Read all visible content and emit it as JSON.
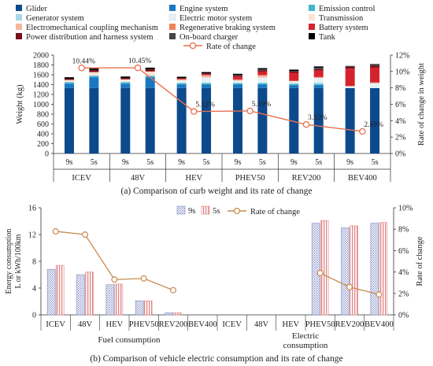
{
  "chart_data": [
    {
      "type": "bar",
      "title": "(a) Comparison of curb weight and its rate of change",
      "ylabel": "Weight (kg)",
      "y2label": "Rate of change in weight",
      "ylim": [
        0,
        2000
      ],
      "y2lim": [
        0,
        12
      ],
      "yticks": [
        "0",
        "200",
        "400",
        "600",
        "800",
        "1000",
        "1200",
        "1400",
        "1600",
        "1800",
        "2000"
      ],
      "y2ticks": [
        "0%",
        "2%",
        "4%",
        "6%",
        "8%",
        "10%",
        "12%"
      ],
      "groups": [
        "ICEV",
        "48V",
        "HEV",
        "PHEV50",
        "REV200",
        "BEV400"
      ],
      "sub_categories": [
        "9s",
        "5s"
      ],
      "legend_position": "top",
      "components": [
        {
          "name": "Glider",
          "color": "#0c4a8c"
        },
        {
          "name": "Engine system",
          "color": "#1a78c2"
        },
        {
          "name": "Emission control",
          "color": "#3fb6cf"
        },
        {
          "name": "Generator system",
          "color": "#a8d8e6"
        },
        {
          "name": "Electric motor system",
          "color": "#e6f1f6"
        },
        {
          "name": "Transmission",
          "color": "#fde3d6"
        },
        {
          "name": "Electromechanical coupling mechanism",
          "color": "#f5b89f"
        },
        {
          "name": "Regenerative braking system",
          "color": "#f0825a"
        },
        {
          "name": "Battery system",
          "color": "#d5232e"
        },
        {
          "name": "Power distribution and harness system",
          "color": "#7a0e1a"
        },
        {
          "name": "On-board charger",
          "color": "#444444"
        },
        {
          "name": "Tank",
          "color": "#000000"
        }
      ],
      "stacks": [
        {
          "group": "ICEV",
          "sub": "9s",
          "values": [
            1330,
            90,
            30,
            0,
            0,
            45,
            0,
            0,
            0,
            25,
            0,
            30
          ]
        },
        {
          "group": "ICEV",
          "sub": "5s",
          "values": [
            1330,
            220,
            30,
            0,
            0,
            75,
            0,
            0,
            0,
            45,
            0,
            30
          ]
        },
        {
          "group": "48V",
          "sub": "9s",
          "values": [
            1330,
            90,
            30,
            0,
            10,
            45,
            0,
            0,
            5,
            25,
            0,
            30
          ]
        },
        {
          "group": "48V",
          "sub": "5s",
          "values": [
            1330,
            220,
            30,
            0,
            10,
            75,
            0,
            0,
            5,
            45,
            0,
            30
          ]
        },
        {
          "group": "HEV",
          "sub": "9s",
          "values": [
            1330,
            70,
            25,
            15,
            45,
            0,
            15,
            10,
            10,
            15,
            0,
            25
          ]
        },
        {
          "group": "HEV",
          "sub": "5s",
          "values": [
            1330,
            70,
            25,
            20,
            100,
            0,
            35,
            15,
            15,
            20,
            0,
            25
          ]
        },
        {
          "group": "PHEV50",
          "sub": "9s",
          "values": [
            1330,
            70,
            25,
            15,
            40,
            0,
            15,
            10,
            60,
            20,
            10,
            25
          ]
        },
        {
          "group": "PHEV50",
          "sub": "5s",
          "values": [
            1330,
            70,
            25,
            20,
            100,
            0,
            35,
            15,
            70,
            25,
            20,
            25
          ]
        },
        {
          "group": "REV200",
          "sub": "9s",
          "values": [
            1330,
            60,
            20,
            25,
            35,
            0,
            0,
            10,
            160,
            25,
            15,
            25
          ]
        },
        {
          "group": "REV200",
          "sub": "5s",
          "values": [
            1330,
            60,
            20,
            30,
            100,
            0,
            0,
            15,
            130,
            30,
            30,
            25
          ]
        },
        {
          "group": "BEV400",
          "sub": "9s",
          "values": [
            1330,
            0,
            0,
            0,
            35,
            0,
            0,
            10,
            350,
            35,
            20,
            0
          ]
        },
        {
          "group": "BEV400",
          "sub": "5s",
          "values": [
            1330,
            0,
            0,
            0,
            100,
            0,
            0,
            15,
            300,
            40,
            35,
            0
          ]
        }
      ],
      "rate_series": {
        "name": "Rate of change",
        "color": "#e8704f",
        "values": [
          10.44,
          10.45,
          5.12,
          5.19,
          3.53,
          2.69
        ],
        "labels": [
          "10.44%",
          "10.45%",
          "5.12%",
          "5.19%",
          "3.53%",
          "2.69%"
        ]
      }
    },
    {
      "type": "bar",
      "title": "(b) Comparison of vehicle electric consumption and its rate of change",
      "ylabel_lines": [
        "Energy consumption",
        "L or kWh/100km"
      ],
      "y2label": "Rate of change",
      "ylim": [
        0,
        16
      ],
      "y2lim": [
        0,
        10
      ],
      "yticks": [
        "0",
        "4",
        "8",
        "12",
        "16"
      ],
      "y2ticks": [
        "0%",
        "2%",
        "4%",
        "6%",
        "8%",
        "10%"
      ],
      "categories": [
        "ICEV",
        "48V",
        "HEV",
        "PHEV50",
        "REV200",
        "BEV400",
        "ICEV",
        "48V",
        "HEV",
        "PHEV50",
        "REV200",
        "BEV400"
      ],
      "group_labels": [
        "Fuel consumption",
        "Electric consumption"
      ],
      "legend_position": "top",
      "series": [
        {
          "name": "9s",
          "color": "#8a93c7",
          "values": [
            6.8,
            6.0,
            4.5,
            2.1,
            0.3,
            0,
            0,
            0,
            0,
            13.7,
            13.0,
            13.7
          ]
        },
        {
          "name": "5s",
          "color": "#e48a8a",
          "values": [
            7.4,
            6.4,
            4.6,
            2.1,
            0.3,
            0,
            0,
            0,
            0,
            14.1,
            13.3,
            13.8
          ]
        }
      ],
      "rate_series": {
        "name": "Rate of change",
        "color": "#c88a50",
        "fuel": [
          7.8,
          7.5,
          3.3,
          3.4,
          2.3
        ],
        "electric": [
          3.9,
          2.6,
          1.9
        ]
      }
    }
  ]
}
